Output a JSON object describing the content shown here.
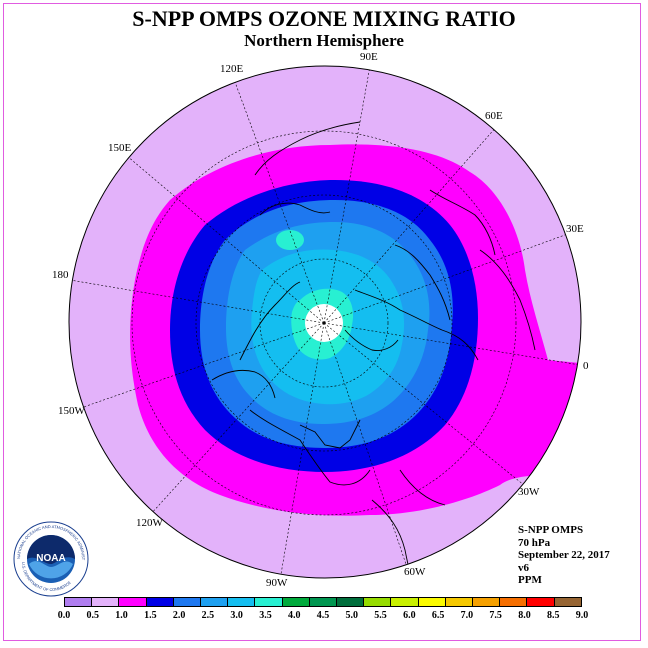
{
  "title": "S-NPP OMPS OZONE MIXING RATIO",
  "subtitle": "Northern Hemisphere",
  "longitude_labels": [
    "90E",
    "60E",
    "30E",
    "0",
    "30W",
    "60W",
    "90W",
    "120W",
    "150W",
    "180",
    "150E",
    "120E"
  ],
  "info": {
    "instrument": "S-NPP OMPS",
    "level": "70 hPa",
    "date": "September 22, 2017",
    "version": "v6",
    "units": "PPM"
  },
  "logo": {
    "text": "NOAA",
    "ring_text": "NATIONAL OCEANIC AND ATMOSPHERIC ADMINISTRATION",
    "ring_text_bottom": "U.S. DEPARTMENT OF COMMERCE"
  },
  "legend": {
    "ticks": [
      "0.0",
      "0.5",
      "1.0",
      "1.5",
      "2.0",
      "2.5",
      "3.0",
      "3.5",
      "4.0",
      "4.5",
      "5.0",
      "5.5",
      "6.0",
      "6.5",
      "7.0",
      "7.5",
      "8.0",
      "8.5",
      "9.0"
    ],
    "colors": [
      "#b07ef0",
      "#e3b2fa",
      "#ff00ff",
      "#0000e6",
      "#1e78f0",
      "#1ea0f0",
      "#14bef0",
      "#28f0d2",
      "#00aa3c",
      "#009650",
      "#006e3c",
      "#96dc00",
      "#c8f000",
      "#fafa00",
      "#f5c800",
      "#f5a000",
      "#f56e00",
      "#ff0000",
      "#966432"
    ]
  },
  "map_colors": {
    "c05": "#e3b2fa",
    "c10": "#ff00ff",
    "c15": "#0000e6",
    "c20": "#1e78f0",
    "c25": "#1ea0f0",
    "c30": "#14bef0",
    "c35": "#28f0d2"
  }
}
